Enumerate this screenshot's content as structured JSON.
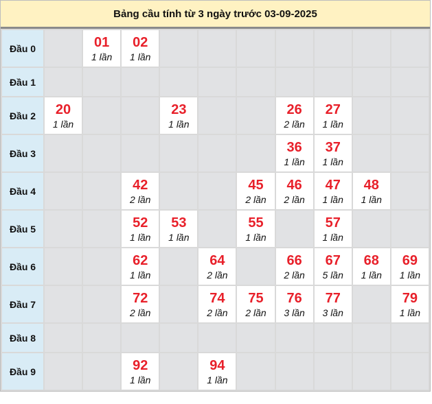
{
  "title": "Bảng cầu tính từ 3 ngày trước 03-09-2025",
  "colors": {
    "number": "#e8202a",
    "header_bg": "#fff2c2",
    "row_head_bg": "#d9ecf6",
    "empty_cell": "#e1e2e4"
  },
  "rows": [
    {
      "label": "Đầu 0",
      "cells": [
        null,
        {
          "num": "01",
          "count": "1 lần"
        },
        {
          "num": "02",
          "count": "1 lần"
        },
        null,
        null,
        null,
        null,
        null,
        null,
        null
      ]
    },
    {
      "label": "Đầu 1",
      "cells": [
        null,
        null,
        null,
        null,
        null,
        null,
        null,
        null,
        null,
        null
      ]
    },
    {
      "label": "Đầu 2",
      "cells": [
        {
          "num": "20",
          "count": "1 lần"
        },
        null,
        null,
        {
          "num": "23",
          "count": "1 lần"
        },
        null,
        null,
        {
          "num": "26",
          "count": "2 lần"
        },
        {
          "num": "27",
          "count": "1 lần"
        },
        null,
        null
      ]
    },
    {
      "label": "Đầu 3",
      "cells": [
        null,
        null,
        null,
        null,
        null,
        null,
        {
          "num": "36",
          "count": "1 lần"
        },
        {
          "num": "37",
          "count": "1 lần"
        },
        null,
        null
      ]
    },
    {
      "label": "Đầu 4",
      "cells": [
        null,
        null,
        {
          "num": "42",
          "count": "2 lần"
        },
        null,
        null,
        {
          "num": "45",
          "count": "2 lần"
        },
        {
          "num": "46",
          "count": "2 lần"
        },
        {
          "num": "47",
          "count": "1 lần"
        },
        {
          "num": "48",
          "count": "1 lần"
        },
        null
      ]
    },
    {
      "label": "Đầu 5",
      "cells": [
        null,
        null,
        {
          "num": "52",
          "count": "1 lần"
        },
        {
          "num": "53",
          "count": "1 lần"
        },
        null,
        {
          "num": "55",
          "count": "1 lần"
        },
        null,
        {
          "num": "57",
          "count": "1 lần"
        },
        null,
        null
      ]
    },
    {
      "label": "Đầu 6",
      "cells": [
        null,
        null,
        {
          "num": "62",
          "count": "1 lần"
        },
        null,
        {
          "num": "64",
          "count": "2 lần"
        },
        null,
        {
          "num": "66",
          "count": "2 lần"
        },
        {
          "num": "67",
          "count": "5 lần"
        },
        {
          "num": "68",
          "count": "1 lần"
        },
        {
          "num": "69",
          "count": "1 lần"
        }
      ]
    },
    {
      "label": "Đầu 7",
      "cells": [
        null,
        null,
        {
          "num": "72",
          "count": "2 lần"
        },
        null,
        {
          "num": "74",
          "count": "2 lần"
        },
        {
          "num": "75",
          "count": "2 lần"
        },
        {
          "num": "76",
          "count": "3 lần"
        },
        {
          "num": "77",
          "count": "3 lần"
        },
        null,
        {
          "num": "79",
          "count": "1 lần"
        }
      ]
    },
    {
      "label": "Đầu 8",
      "cells": [
        null,
        null,
        null,
        null,
        null,
        null,
        null,
        null,
        null,
        null
      ]
    },
    {
      "label": "Đầu 9",
      "cells": [
        null,
        null,
        {
          "num": "92",
          "count": "1 lần"
        },
        null,
        {
          "num": "94",
          "count": "1 lần"
        },
        null,
        null,
        null,
        null,
        null
      ]
    }
  ]
}
